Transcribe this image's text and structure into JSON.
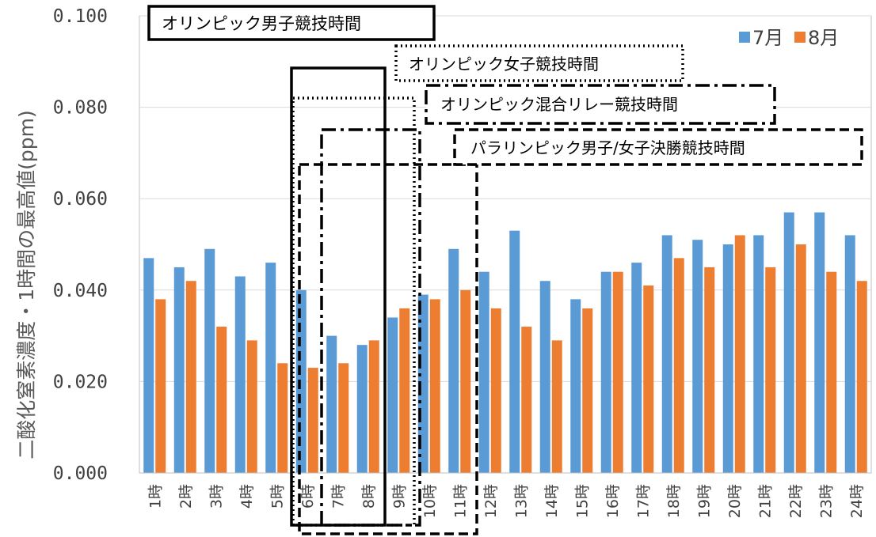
{
  "chart_data": {
    "type": "bar",
    "ylabel": "二酸化窒素濃度・1時間の最高値(ppm)",
    "ylim": [
      0,
      0.1
    ],
    "yticks": [
      "0.000",
      "0.020",
      "0.040",
      "0.060",
      "0.080",
      "0.100"
    ],
    "grid": true,
    "legend_position": "top-right",
    "categories": [
      "1時",
      "2時",
      "3時",
      "4時",
      "5時",
      "6時",
      "7時",
      "8時",
      "9時",
      "10時",
      "11時",
      "12時",
      "13時",
      "14時",
      "15時",
      "16時",
      "17時",
      "18時",
      "19時",
      "20時",
      "21時",
      "22時",
      "23時",
      "24時"
    ],
    "series": [
      {
        "name": "7月",
        "color": "#5B9BD5",
        "values": [
          0.047,
          0.045,
          0.049,
          0.043,
          0.046,
          0.04,
          0.03,
          0.028,
          0.034,
          0.039,
          0.049,
          0.044,
          0.053,
          0.042,
          0.038,
          0.044,
          0.046,
          0.052,
          0.051,
          0.05,
          0.052,
          0.057,
          0.057,
          0.052
        ]
      },
      {
        "name": "8月",
        "color": "#ED7D31",
        "values": [
          0.038,
          0.042,
          0.032,
          0.029,
          0.024,
          0.023,
          0.024,
          0.029,
          0.036,
          0.038,
          0.04,
          0.036,
          0.032,
          0.029,
          0.036,
          0.044,
          0.041,
          0.047,
          0.045,
          0.052,
          0.045,
          0.05,
          0.044,
          0.042
        ]
      }
    ],
    "annotations": [
      {
        "label": "オリンピック男子競技時間",
        "style": "solid",
        "hours": "6時–8時"
      },
      {
        "label": "オリンピック女子競技時間",
        "style": "dotted",
        "hours": "6時–9時"
      },
      {
        "label": "オリンピック混合リレー競技時間",
        "style": "dash-dot",
        "hours": "7時–10時"
      },
      {
        "label": "パラリンピック男子/女子決勝競技時間",
        "style": "dashed",
        "hours": "6時–11時"
      }
    ]
  }
}
